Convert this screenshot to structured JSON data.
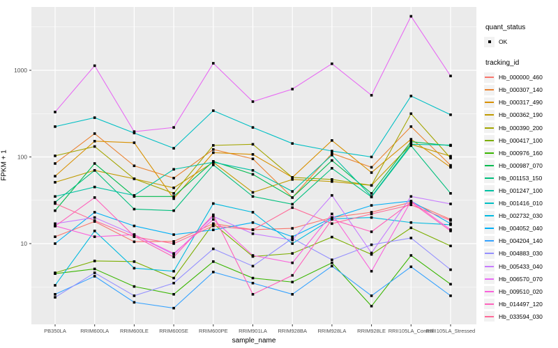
{
  "figure": {
    "background": "#FFFFFF",
    "panel_background": "#EBEBEB",
    "grid_color": "#FFFFFF",
    "tick_label_color": "#4D4D4D",
    "point_color": "#000000"
  },
  "legend": {
    "quant_status": {
      "title": "quant_status",
      "ok_label": "OK",
      "symbol": "point"
    },
    "tracking_id": {
      "title": "tracking_id"
    }
  },
  "chart_data": {
    "type": "line",
    "title": "",
    "xlabel": "sample_name",
    "ylabel": "FPKM + 1",
    "yscale": "log10",
    "ylim": [
      1.17,
      5370
    ],
    "yticks": [
      10,
      100,
      1000
    ],
    "grid": true,
    "legend_position": "right",
    "categories": [
      "PB350LA",
      "RRIM600LA",
      "RRIM600LE",
      "RRIM600SE",
      "RRIM600PE",
      "RRIM901LA",
      "RRIM928BA",
      "RRIM928LA",
      "RRIM928LE",
      "RRII105LA_Control",
      "RRII105LA_Stressed"
    ],
    "series": [
      {
        "name": "Hb_000000_460",
        "color": "#F8766D",
        "values": [
          12,
          18,
          10.5,
          10.6,
          17,
          14.5,
          15,
          20,
          23,
          30,
          19
        ]
      },
      {
        "name": "Hb_000307_140",
        "color": "#EA8331",
        "values": [
          84,
          186,
          79,
          57,
          122,
          95,
          34,
          110,
          76,
          224,
          80
        ]
      },
      {
        "name": "Hb_000317_490",
        "color": "#D89000",
        "values": [
          60,
          152,
          146,
          33,
          112,
          107,
          58,
          155,
          66,
          160,
          76
        ]
      },
      {
        "name": "Hb_000362_190",
        "color": "#C09B00",
        "values": [
          51,
          70,
          56,
          44,
          87,
          39,
          55,
          52,
          47,
          140,
          102
        ]
      },
      {
        "name": "Hb_000390_200",
        "color": "#A3A500",
        "values": [
          103,
          132,
          56,
          38,
          136,
          140,
          58,
          55,
          47,
          316,
          97
        ]
      },
      {
        "name": "Hb_000417_100",
        "color": "#7CAE00",
        "values": [
          4.6,
          6.3,
          6.2,
          4.0,
          17,
          7.1,
          7.7,
          11.9,
          7.5,
          15.2,
          9.4
        ]
      },
      {
        "name": "Hb_000976_160",
        "color": "#39B600",
        "values": [
          4.5,
          5.1,
          3.2,
          2.6,
          6.2,
          4.0,
          3.6,
          6.0,
          1.9,
          7.3,
          3.4
        ]
      },
      {
        "name": "Hb_000987_070",
        "color": "#00BB4E",
        "values": [
          24,
          84,
          35,
          35,
          89,
          63,
          34,
          91,
          38,
          150,
          135
        ]
      },
      {
        "name": "Hb_001153_150",
        "color": "#00BF7D",
        "values": [
          30,
          70,
          25,
          24,
          81,
          35,
          28.5,
          74,
          34.5,
          135,
          38
        ]
      },
      {
        "name": "Hb_001247_100",
        "color": "#00C1A3",
        "values": [
          35,
          45,
          36,
          72,
          87,
          70,
          40,
          105,
          35,
          140,
          137
        ]
      },
      {
        "name": "Hb_001416_010",
        "color": "#00BFC4",
        "values": [
          224,
          284,
          189,
          126,
          342,
          219,
          143,
          117,
          100,
          505,
          307
        ]
      },
      {
        "name": "Hb_002732_030",
        "color": "#00BAE0",
        "values": [
          3.3,
          14,
          5.2,
          4.8,
          29,
          23,
          10,
          19.3,
          20,
          17.5,
          16.5
        ]
      },
      {
        "name": "Hb_004052_040",
        "color": "#00B0F6",
        "values": [
          10,
          23,
          16,
          12.7,
          14.4,
          17.5,
          12,
          19.8,
          27.6,
          31,
          17
        ]
      },
      {
        "name": "Hb_004204_140",
        "color": "#35A2FF",
        "values": [
          2.6,
          4.2,
          2.1,
          1.8,
          4.7,
          3.5,
          2.6,
          5.5,
          2.5,
          5.4,
          2.5
        ]
      },
      {
        "name": "Hb_004883_030",
        "color": "#9590FF",
        "values": [
          2.4,
          4.6,
          2.5,
          3.5,
          8.7,
          5.5,
          11.5,
          6.5,
          9.7,
          11.6,
          5.0
        ]
      },
      {
        "name": "Hb_005433_040",
        "color": "#C77CFF",
        "values": [
          17,
          20,
          12.7,
          7.5,
          20.6,
          13,
          11,
          36,
          7.8,
          35,
          28.7
        ]
      },
      {
        "name": "Hb_006570_070",
        "color": "#E76BF3",
        "values": [
          330,
          1130,
          196,
          219,
          1205,
          435,
          607,
          1190,
          515,
          4200,
          860
        ]
      },
      {
        "name": "Hb_009510_020",
        "color": "#FA62DB",
        "values": [
          16,
          12,
          12.7,
          7.7,
          19,
          7.3,
          6.0,
          22,
          4.8,
          31,
          14.5
        ]
      },
      {
        "name": "Hb_014497_120",
        "color": "#FF62BC",
        "values": [
          15.9,
          34,
          12.2,
          7.0,
          21.5,
          2.6,
          4.3,
          19,
          13.7,
          30,
          14
        ]
      },
      {
        "name": "Hb_033594_030",
        "color": "#FF6A98",
        "values": [
          29,
          18.4,
          12,
          10,
          16,
          14.4,
          26,
          17,
          22,
          28,
          18.5
        ]
      }
    ]
  }
}
